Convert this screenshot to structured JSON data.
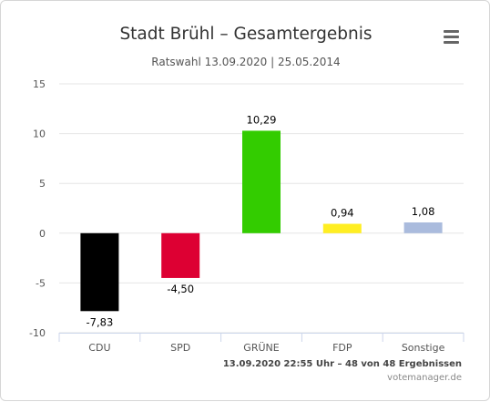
{
  "title": "Stadt Brühl – Gesamtergebnis",
  "subtitle": "Ratswahl 13.09.2020 | 25.05.2014",
  "footer": {
    "date_line": "13.09.2020 22:55 Uhr – 48 von 48 Ergebnissen",
    "credit": "votemanager.de"
  },
  "menu_icon": "hamburger-menu-icon",
  "chart_data": {
    "type": "bar",
    "title": "Stadt Brühl – Gesamtergebnis",
    "subtitle": "Ratswahl 13.09.2020 | 25.05.2014",
    "categories": [
      "CDU",
      "SPD",
      "GRÜNE",
      "FDP",
      "Sonstige"
    ],
    "values": [
      -7.83,
      -4.5,
      10.29,
      0.94,
      1.08
    ],
    "value_labels": [
      "-7,83",
      "-4,50",
      "10,29",
      "0,94",
      "1,08"
    ],
    "colors": [
      "#000000",
      "#dd0033",
      "#33cc00",
      "#ffee22",
      "#aabbdd"
    ],
    "yticks": [
      15,
      10,
      5,
      0,
      -5,
      -10
    ],
    "ytick_labels": [
      "15",
      "10",
      "5",
      "0",
      "-5",
      "-10"
    ],
    "ylim": [
      -10,
      15
    ],
    "xlabel": "",
    "ylabel": "",
    "grid": true,
    "legend": "none"
  }
}
